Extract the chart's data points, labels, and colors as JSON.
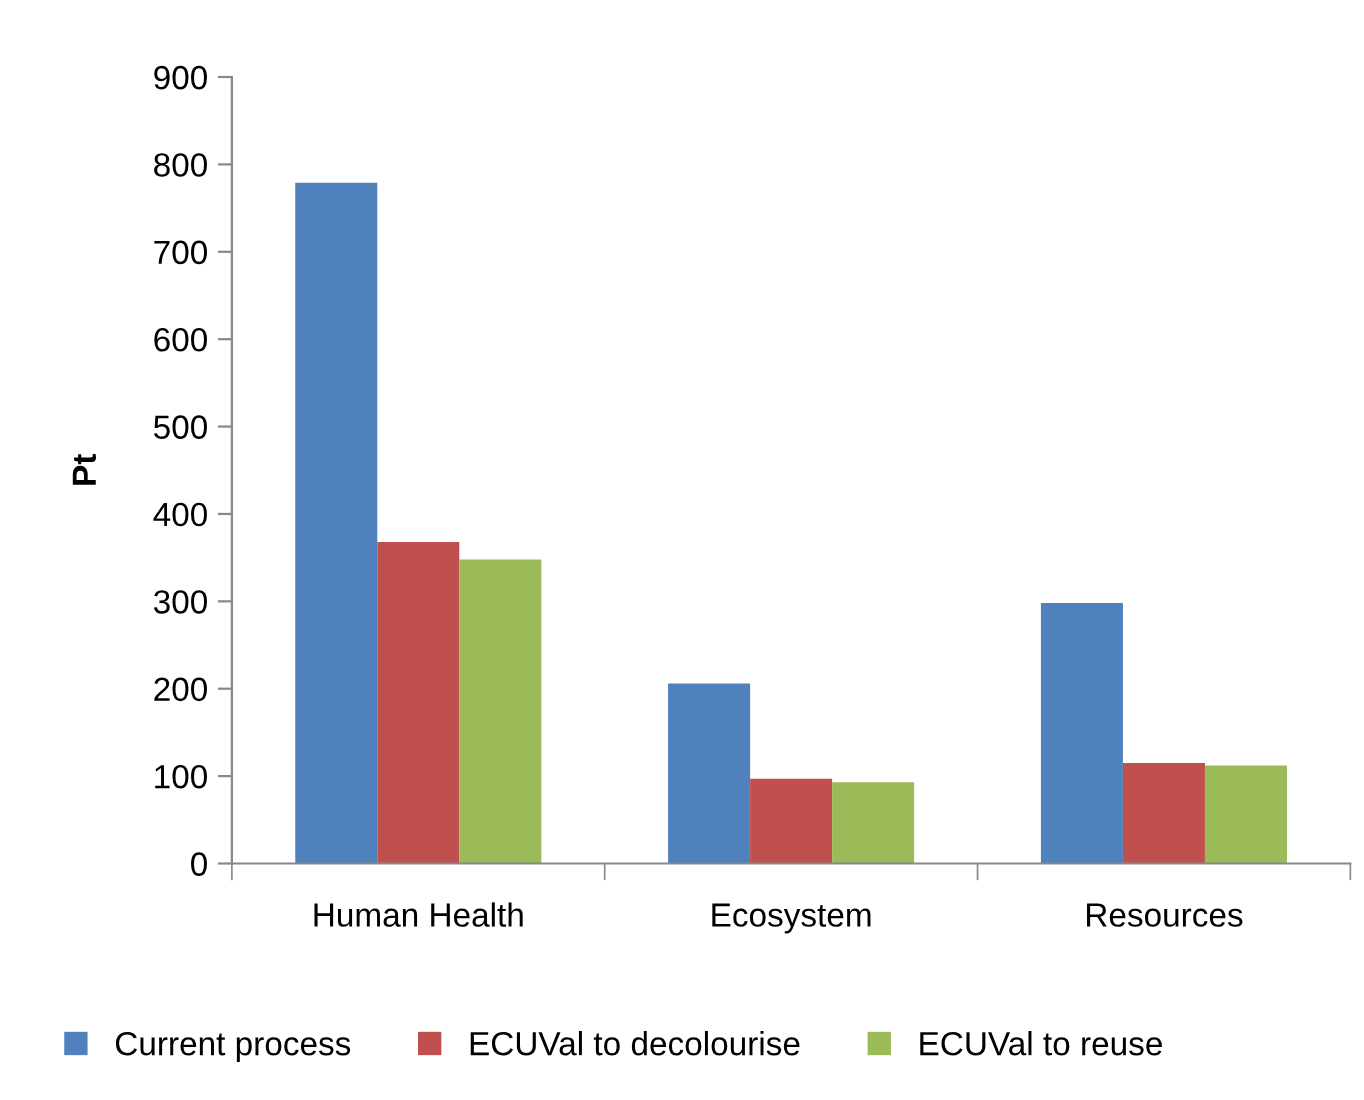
{
  "chart_data": {
    "type": "bar",
    "ylabel": "Pt",
    "categories": [
      "Human Health",
      "Ecosystem",
      "Resources"
    ],
    "series": [
      {
        "name": "Current process",
        "color": "#4f81bd",
        "values": [
          779,
          206,
          298
        ]
      },
      {
        "name": "ECUVal to decolourise",
        "color": "#c0504d",
        "values": [
          368,
          97,
          115
        ]
      },
      {
        "name": "ECUVal to reuse",
        "color": "#9bbb59",
        "values": [
          348,
          93,
          112
        ]
      }
    ],
    "ylim": [
      0,
      900
    ],
    "yticks": [
      0,
      100,
      200,
      300,
      400,
      500,
      600,
      700,
      800,
      900
    ],
    "grid": false,
    "legend": "bottom"
  }
}
